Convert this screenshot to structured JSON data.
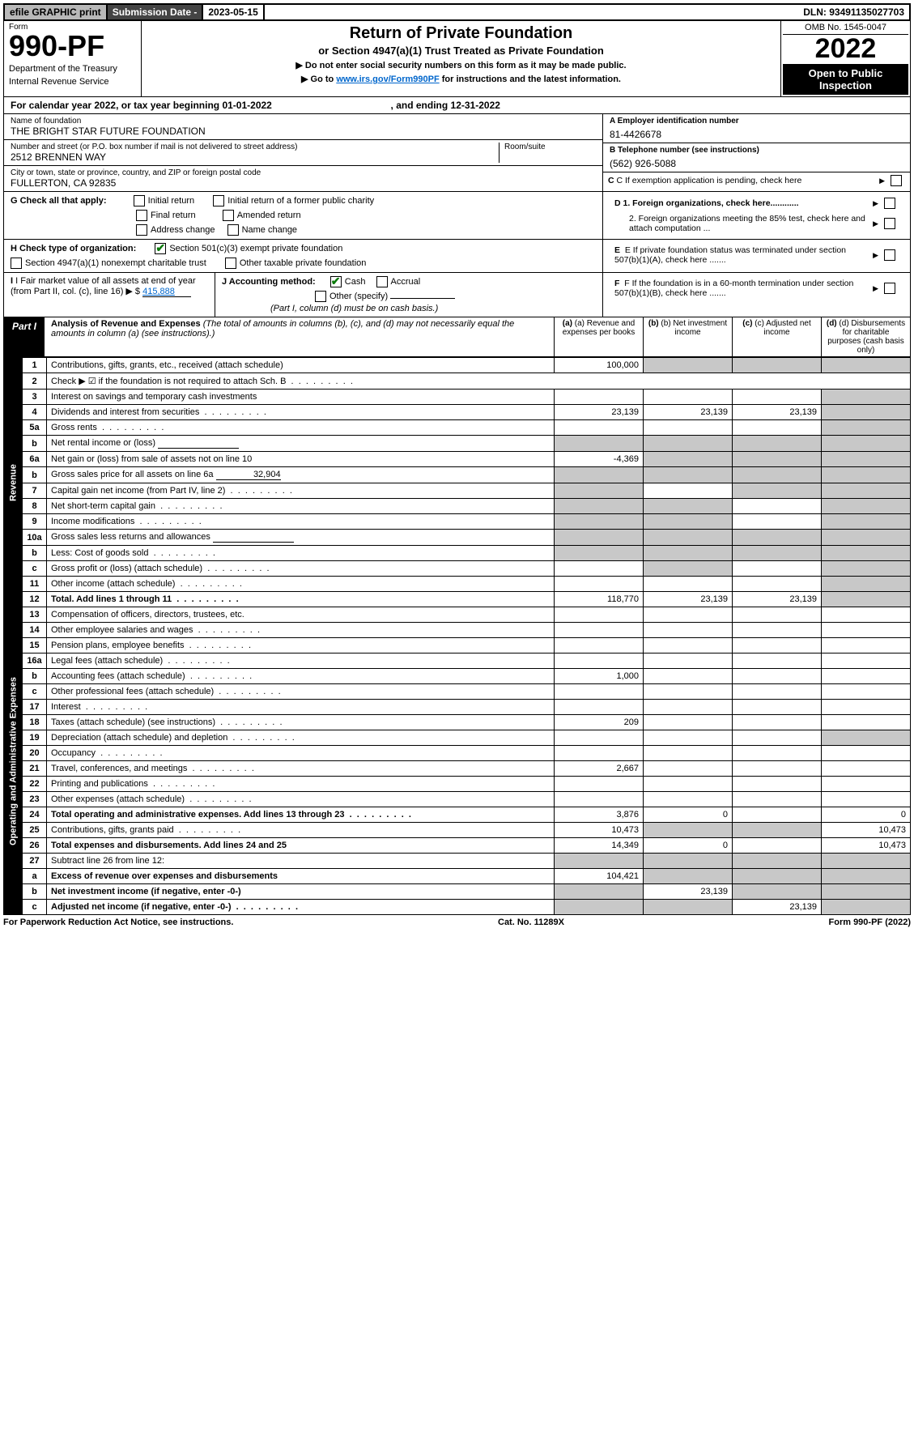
{
  "topbar": {
    "efile": "efile GRAPHIC print",
    "subdate_label": "Submission Date - ",
    "subdate": "2023-05-15",
    "dln_label": "DLN: ",
    "dln": "93491135027703"
  },
  "header": {
    "form_word": "Form",
    "form_num": "990-PF",
    "dept": "Department of the Treasury",
    "irs": "Internal Revenue Service",
    "title": "Return of Private Foundation",
    "subtitle": "or Section 4947(a)(1) Trust Treated as Private Foundation",
    "instr1": "▶ Do not enter social security numbers on this form as it may be made public.",
    "instr2_pre": "▶ Go to ",
    "instr2_link": "www.irs.gov/Form990PF",
    "instr2_post": " for instructions and the latest information.",
    "omb": "OMB No. 1545-0047",
    "year": "2022",
    "open": "Open to Public Inspection"
  },
  "cal_year": {
    "prefix": "For calendar year 2022, or tax year beginning ",
    "begin": "01-01-2022",
    "mid": " , and ending ",
    "end": "12-31-2022"
  },
  "info": {
    "name_label": "Name of foundation",
    "name": "THE BRIGHT STAR FUTURE FOUNDATION",
    "addr_label": "Number and street (or P.O. box number if mail is not delivered to street address)",
    "addr": "2512 BRENNEN WAY",
    "room_label": "Room/suite",
    "city_label": "City or town, state or province, country, and ZIP or foreign postal code",
    "city": "FULLERTON, CA  92835",
    "ein_label": "A Employer identification number",
    "ein": "81-4426678",
    "phone_label": "B Telephone number (see instructions)",
    "phone": "(562) 926-5088",
    "c_label": "C If exemption application is pending, check here",
    "g_label": "G Check all that apply:",
    "g_opts": [
      "Initial return",
      "Initial return of a former public charity",
      "Final return",
      "Amended return",
      "Address change",
      "Name change"
    ],
    "d1": "D 1. Foreign organizations, check here............",
    "d2": "2. Foreign organizations meeting the 85% test, check here and attach computation ...",
    "h_label": "H Check type of organization:",
    "h1": "Section 501(c)(3) exempt private foundation",
    "h2": "Section 4947(a)(1) nonexempt charitable trust",
    "h3": "Other taxable private foundation",
    "e_label": "E  If private foundation status was terminated under section 507(b)(1)(A), check here .......",
    "i_label": "I Fair market value of all assets at end of year (from Part II, col. (c), line 16) ▶ $",
    "i_val": "415,888",
    "j_label": "J Accounting method:",
    "j_cash": "Cash",
    "j_accrual": "Accrual",
    "j_other": "Other (specify)",
    "j_note": "(Part I, column (d) must be on cash basis.)",
    "f_label": "F  If the foundation is in a 60-month termination under section 507(b)(1)(B), check here ......."
  },
  "part1": {
    "label": "Part I",
    "title": "Analysis of Revenue and Expenses",
    "note": "(The total of amounts in columns (b), (c), and (d) may not necessarily equal the amounts in column (a) (see instructions).)",
    "col_a": "(a)   Revenue and expenses per books",
    "col_b": "(b)   Net investment income",
    "col_c": "(c)   Adjusted net income",
    "col_d": "(d)   Disbursements for charitable purposes (cash basis only)"
  },
  "side": {
    "revenue": "Revenue",
    "expenses": "Operating and Administrative Expenses"
  },
  "rows": [
    {
      "n": "1",
      "desc": "Contributions, gifts, grants, etc., received (attach schedule)",
      "a": "100,000",
      "b": "",
      "c": "",
      "d": "",
      "grey": [
        "b",
        "c",
        "d"
      ]
    },
    {
      "n": "2",
      "desc": "Check ▶ ☑ if the foundation is not required to attach Sch. B",
      "dots": true,
      "nocols": true
    },
    {
      "n": "3",
      "desc": "Interest on savings and temporary cash investments",
      "a": "",
      "b": "",
      "c": "",
      "d": "",
      "grey": [
        "d"
      ]
    },
    {
      "n": "4",
      "desc": "Dividends and interest from securities",
      "dots": true,
      "a": "23,139",
      "b": "23,139",
      "c": "23,139",
      "d": "",
      "grey": [
        "d"
      ]
    },
    {
      "n": "5a",
      "desc": "Gross rents",
      "dots": true,
      "a": "",
      "b": "",
      "c": "",
      "d": "",
      "grey": [
        "d"
      ]
    },
    {
      "n": "b",
      "desc": "Net rental income or (loss)",
      "inline": true,
      "a": "",
      "b": "",
      "c": "",
      "d": "",
      "grey": [
        "a",
        "b",
        "c",
        "d"
      ]
    },
    {
      "n": "6a",
      "desc": "Net gain or (loss) from sale of assets not on line 10",
      "a": "-4,369",
      "b": "",
      "c": "",
      "d": "",
      "grey": [
        "b",
        "c",
        "d"
      ]
    },
    {
      "n": "b",
      "desc": "Gross sales price for all assets on line 6a",
      "inline_val": "32,904",
      "grey": [
        "a",
        "b",
        "c",
        "d"
      ],
      "a": "",
      "b": "",
      "c": "",
      "d": ""
    },
    {
      "n": "7",
      "desc": "Capital gain net income (from Part IV, line 2)",
      "dots": true,
      "a": "",
      "b": "",
      "c": "",
      "d": "",
      "grey": [
        "a",
        "c",
        "d"
      ]
    },
    {
      "n": "8",
      "desc": "Net short-term capital gain",
      "dots": true,
      "a": "",
      "b": "",
      "c": "",
      "d": "",
      "grey": [
        "a",
        "b",
        "d"
      ]
    },
    {
      "n": "9",
      "desc": "Income modifications",
      "dots": true,
      "a": "",
      "b": "",
      "c": "",
      "d": "",
      "grey": [
        "a",
        "b",
        "d"
      ]
    },
    {
      "n": "10a",
      "desc": "Gross sales less returns and allowances",
      "inline": true,
      "a": "",
      "b": "",
      "c": "",
      "d": "",
      "grey": [
        "a",
        "b",
        "c",
        "d"
      ]
    },
    {
      "n": "b",
      "desc": "Less: Cost of goods sold",
      "dots": true,
      "inline": true,
      "a": "",
      "b": "",
      "c": "",
      "d": "",
      "grey": [
        "a",
        "b",
        "c",
        "d"
      ]
    },
    {
      "n": "c",
      "desc": "Gross profit or (loss) (attach schedule)",
      "dots": true,
      "a": "",
      "b": "",
      "c": "",
      "d": "",
      "grey": [
        "b",
        "d"
      ]
    },
    {
      "n": "11",
      "desc": "Other income (attach schedule)",
      "dots": true,
      "a": "",
      "b": "",
      "c": "",
      "d": "",
      "grey": [
        "d"
      ]
    },
    {
      "n": "12",
      "desc": "Total. Add lines 1 through 11",
      "dots": true,
      "bold": true,
      "a": "118,770",
      "b": "23,139",
      "c": "23,139",
      "d": "",
      "grey": [
        "d"
      ]
    }
  ],
  "exp_rows": [
    {
      "n": "13",
      "desc": "Compensation of officers, directors, trustees, etc.",
      "a": "",
      "b": "",
      "c": "",
      "d": ""
    },
    {
      "n": "14",
      "desc": "Other employee salaries and wages",
      "dots": true,
      "a": "",
      "b": "",
      "c": "",
      "d": ""
    },
    {
      "n": "15",
      "desc": "Pension plans, employee benefits",
      "dots": true,
      "a": "",
      "b": "",
      "c": "",
      "d": ""
    },
    {
      "n": "16a",
      "desc": "Legal fees (attach schedule)",
      "dots": true,
      "a": "",
      "b": "",
      "c": "",
      "d": ""
    },
    {
      "n": "b",
      "desc": "Accounting fees (attach schedule)",
      "dots": true,
      "a": "1,000",
      "b": "",
      "c": "",
      "d": ""
    },
    {
      "n": "c",
      "desc": "Other professional fees (attach schedule)",
      "dots": true,
      "a": "",
      "b": "",
      "c": "",
      "d": ""
    },
    {
      "n": "17",
      "desc": "Interest",
      "dots": true,
      "a": "",
      "b": "",
      "c": "",
      "d": ""
    },
    {
      "n": "18",
      "desc": "Taxes (attach schedule) (see instructions)",
      "dots": true,
      "a": "209",
      "b": "",
      "c": "",
      "d": ""
    },
    {
      "n": "19",
      "desc": "Depreciation (attach schedule) and depletion",
      "dots": true,
      "a": "",
      "b": "",
      "c": "",
      "d": "",
      "grey": [
        "d"
      ]
    },
    {
      "n": "20",
      "desc": "Occupancy",
      "dots": true,
      "a": "",
      "b": "",
      "c": "",
      "d": ""
    },
    {
      "n": "21",
      "desc": "Travel, conferences, and meetings",
      "dots": true,
      "a": "2,667",
      "b": "",
      "c": "",
      "d": ""
    },
    {
      "n": "22",
      "desc": "Printing and publications",
      "dots": true,
      "a": "",
      "b": "",
      "c": "",
      "d": ""
    },
    {
      "n": "23",
      "desc": "Other expenses (attach schedule)",
      "dots": true,
      "a": "",
      "b": "",
      "c": "",
      "d": ""
    },
    {
      "n": "24",
      "desc": "Total operating and administrative expenses. Add lines 13 through 23",
      "dots": true,
      "bold": true,
      "a": "3,876",
      "b": "0",
      "c": "",
      "d": "0"
    },
    {
      "n": "25",
      "desc": "Contributions, gifts, grants paid",
      "dots": true,
      "a": "10,473",
      "b": "",
      "c": "",
      "d": "10,473",
      "grey": [
        "b",
        "c"
      ]
    },
    {
      "n": "26",
      "desc": "Total expenses and disbursements. Add lines 24 and 25",
      "bold": true,
      "a": "14,349",
      "b": "0",
      "c": "",
      "d": "10,473"
    },
    {
      "n": "27",
      "desc": "Subtract line 26 from line 12:",
      "a": "",
      "b": "",
      "c": "",
      "d": "",
      "grey": [
        "a",
        "b",
        "c",
        "d"
      ]
    },
    {
      "n": "a",
      "desc": "Excess of revenue over expenses and disbursements",
      "bold": true,
      "a": "104,421",
      "b": "",
      "c": "",
      "d": "",
      "grey": [
        "b",
        "c",
        "d"
      ]
    },
    {
      "n": "b",
      "desc": "Net investment income (if negative, enter -0-)",
      "bold": true,
      "a": "",
      "b": "23,139",
      "c": "",
      "d": "",
      "grey": [
        "a",
        "c",
        "d"
      ]
    },
    {
      "n": "c",
      "desc": "Adjusted net income (if negative, enter -0-)",
      "dots": true,
      "bold": true,
      "a": "",
      "b": "",
      "c": "23,139",
      "d": "",
      "grey": [
        "a",
        "b",
        "d"
      ]
    }
  ],
  "footer": {
    "left": "For Paperwork Reduction Act Notice, see instructions.",
    "mid": "Cat. No. 11289X",
    "right": "Form 990-PF (2022)"
  }
}
